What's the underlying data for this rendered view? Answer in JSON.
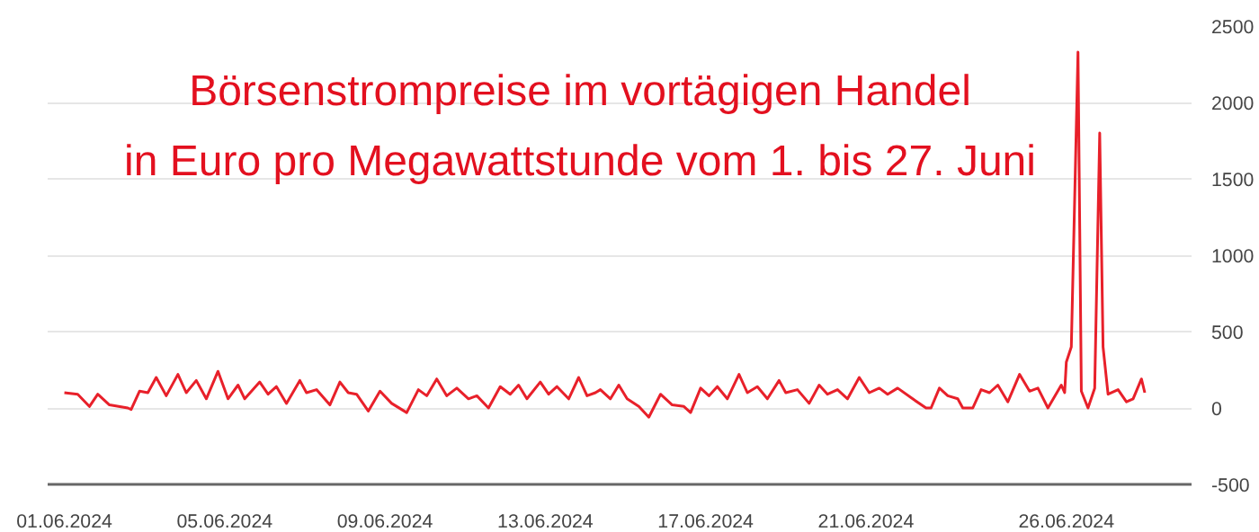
{
  "chart_data": {
    "type": "line",
    "title": "Börsenstrompreise im vortägigen Handel",
    "subtitle": "in Euro pro Megawattstunde vom 1. bis 27. Juni",
    "series": [
      {
        "color": "#e8202a",
        "x": [
          "2024-06-01T00:00",
          "2024-06-01T08:00",
          "2024-06-01T15:00",
          "2024-06-01T20:00",
          "2024-06-02T03:00",
          "2024-06-02T14:00",
          "2024-06-02T16:00",
          "2024-06-02T21:00",
          "2024-06-03T02:00",
          "2024-06-03T07:00",
          "2024-06-03T13:00",
          "2024-06-03T20:00",
          "2024-06-04T01:00",
          "2024-06-04T07:00",
          "2024-06-04T13:00",
          "2024-06-04T20:00",
          "2024-06-05T02:00",
          "2024-06-05T08:00",
          "2024-06-05T12:00",
          "2024-06-05T21:00",
          "2024-06-06T02:00",
          "2024-06-06T07:00",
          "2024-06-06T13:00",
          "2024-06-06T21:00",
          "2024-06-07T01:00",
          "2024-06-07T07:00",
          "2024-06-07T15:00",
          "2024-06-07T21:00",
          "2024-06-08T02:00",
          "2024-06-08T07:00",
          "2024-06-08T14:00",
          "2024-06-08T21:00",
          "2024-06-09T04:00",
          "2024-06-09T13:00",
          "2024-06-09T20:00",
          "2024-06-10T01:00",
          "2024-06-10T07:00",
          "2024-06-10T13:00",
          "2024-06-10T19:00",
          "2024-06-11T02:00",
          "2024-06-11T07:00",
          "2024-06-11T14:00",
          "2024-06-11T21:00",
          "2024-06-12T03:00",
          "2024-06-12T08:00",
          "2024-06-12T13:00",
          "2024-06-12T21:00",
          "2024-06-13T02:00",
          "2024-06-13T07:00",
          "2024-06-13T14:00",
          "2024-06-13T20:00",
          "2024-06-14T01:00",
          "2024-06-14T06:00",
          "2024-06-14T09:00",
          "2024-06-14T15:00",
          "2024-06-14T20:00",
          "2024-06-15T01:00",
          "2024-06-15T08:00",
          "2024-06-15T14:00",
          "2024-06-15T21:00",
          "2024-06-16T04:00",
          "2024-06-16T11:00",
          "2024-06-16T15:00",
          "2024-06-16T21:00",
          "2024-06-17T02:00",
          "2024-06-17T07:00",
          "2024-06-17T13:00",
          "2024-06-17T20:00",
          "2024-06-18T01:00",
          "2024-06-18T07:00",
          "2024-06-18T13:00",
          "2024-06-18T20:00",
          "2024-06-19T00:00",
          "2024-06-19T07:00",
          "2024-06-19T14:00",
          "2024-06-19T20:00",
          "2024-06-20T01:00",
          "2024-06-20T07:00",
          "2024-06-20T13:00",
          "2024-06-20T20:00",
          "2024-06-21T02:00",
          "2024-06-21T08:00",
          "2024-06-21T13:00",
          "2024-06-21T19:00",
          "2024-06-22T04:00",
          "2024-06-22T12:00",
          "2024-06-22T15:00",
          "2024-06-22T20:00",
          "2024-06-23T01:00",
          "2024-06-23T07:00",
          "2024-06-23T10:00",
          "2024-06-23T16:00",
          "2024-06-23T21:00",
          "2024-06-24T02:00",
          "2024-06-24T07:00",
          "2024-06-24T13:00",
          "2024-06-24T20:00",
          "2024-06-25T02:00",
          "2024-06-25T07:00",
          "2024-06-25T13:00",
          "2024-06-25T21:00",
          "2024-06-25T23:00",
          "2024-06-26T00:00",
          "2024-06-26T03:00",
          "2024-06-26T07:00",
          "2024-06-26T09:00",
          "2024-06-26T13:00",
          "2024-06-26T17:00",
          "2024-06-26T20:00",
          "2024-06-26T22:00",
          "2024-06-27T01:00",
          "2024-06-27T07:00",
          "2024-06-27T12:00",
          "2024-06-27T16:00",
          "2024-06-27T21:00",
          "2024-06-27T23:00"
        ],
        "values": [
          100,
          90,
          10,
          90,
          20,
          0,
          -10,
          110,
          100,
          200,
          80,
          220,
          100,
          180,
          60,
          240,
          60,
          150,
          60,
          170,
          90,
          140,
          30,
          180,
          100,
          120,
          20,
          170,
          100,
          90,
          -20,
          110,
          30,
          -30,
          120,
          80,
          190,
          80,
          130,
          60,
          80,
          0,
          140,
          90,
          150,
          60,
          170,
          90,
          140,
          60,
          200,
          80,
          100,
          120,
          60,
          150,
          60,
          10,
          -60,
          90,
          20,
          10,
          -30,
          130,
          80,
          140,
          60,
          220,
          100,
          140,
          60,
          180,
          100,
          120,
          30,
          150,
          90,
          120,
          60,
          200,
          100,
          130,
          90,
          130,
          60,
          0,
          0,
          130,
          80,
          60,
          0,
          0,
          120,
          100,
          150,
          40,
          220,
          110,
          130,
          0,
          150,
          100,
          300,
          400,
          2330,
          110,
          0,
          130,
          1800,
          400,
          90,
          120,
          40,
          60,
          190,
          100
        ]
      }
    ],
    "xlim": [
      "2024-05-31T14:00",
      "2024-06-29T03:00"
    ],
    "xticks": [
      {
        "value": "2024-06-01",
        "label": "01.06.2024"
      },
      {
        "value": "2024-06-05",
        "label": "05.06.2024"
      },
      {
        "value": "2024-06-09",
        "label": "09.06.2024"
      },
      {
        "value": "2024-06-13",
        "label": "13.06.2024"
      },
      {
        "value": "2024-06-17",
        "label": "17.06.2024"
      },
      {
        "value": "2024-06-21",
        "label": "21.06.2024"
      },
      {
        "value": "2024-06-26",
        "label": "26.06.2024"
      }
    ],
    "ylim": [
      -500,
      2500
    ],
    "yticks": [
      -500,
      0,
      500,
      1000,
      1500,
      2000,
      2500
    ],
    "grid": "y",
    "line_style": "solid",
    "marker": "none"
  }
}
